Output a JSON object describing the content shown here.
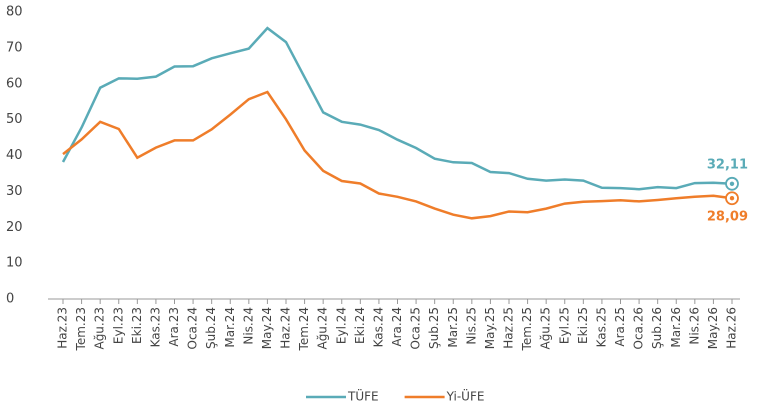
{
  "chart_data": {
    "type": "line",
    "categories": [
      "Haz.23",
      "Tem.23",
      "Ağu.23",
      "Eyl.23",
      "Eki.23",
      "Kas.23",
      "Ara.23",
      "Oca.24",
      "Şub.24",
      "Mar.24",
      "Nis.24",
      "May.24",
      "Haz.24",
      "Tem.24",
      "Ağu.24",
      "Eyl.24",
      "Eki.24",
      "Kas.24",
      "Ara.24",
      "Oca.25",
      "Şub.25",
      "Mar.25",
      "Nis.25",
      "May.25",
      "Haz.25",
      "Tem.25",
      "Ağu.25",
      "Eyl.25",
      "Eki.25",
      "Kas.25",
      "Ara.25",
      "Oca.26",
      "Şub.26",
      "Mar.26",
      "Nis.26",
      "May.26",
      "Haz.26"
    ],
    "series": [
      {
        "name": "TÜFE",
        "color": "#5aabb7",
        "values": [
          38.2,
          47.8,
          58.9,
          61.5,
          61.4,
          62,
          64.8,
          64.9,
          67.1,
          68.5,
          69.8,
          75.5,
          71.6,
          61.8,
          52,
          49.4,
          48.6,
          47.1,
          44.4,
          42.1,
          39.1,
          38.1,
          37.9,
          35.4,
          35.1,
          33.5,
          33,
          33.3,
          33,
          31,
          30.9,
          30.6,
          31.2,
          30.9,
          32.3,
          32.4,
          32.11
        ],
        "value_labels": [
          null,
          null,
          null,
          null,
          null,
          null,
          null,
          null,
          null,
          null,
          null,
          null,
          null,
          null,
          null,
          null,
          null,
          null,
          null,
          null,
          null,
          null,
          null,
          null,
          null,
          null,
          null,
          null,
          null,
          null,
          null,
          null,
          null,
          null,
          null,
          null,
          "32,11"
        ]
      },
      {
        "name": "Yi-ÜFE",
        "color": "#ef7d2a",
        "values": [
          40.4,
          44.5,
          49.4,
          47.4,
          39.4,
          42.2,
          44.2,
          44.2,
          47.3,
          51.4,
          55.7,
          57.7,
          50.1,
          41.4,
          35.7,
          32.9,
          32.2,
          29.4,
          28.5,
          27.2,
          25.2,
          23.5,
          22.5,
          23.1,
          24.4,
          24.2,
          25.2,
          26.6,
          27.1,
          27.3,
          27.5,
          27.2,
          27.6,
          28.1,
          28.5,
          28.8,
          28.09
        ],
        "value_labels": [
          null,
          null,
          null,
          null,
          null,
          null,
          null,
          null,
          null,
          null,
          null,
          null,
          null,
          null,
          null,
          null,
          null,
          null,
          null,
          null,
          null,
          null,
          null,
          null,
          null,
          null,
          null,
          null,
          null,
          null,
          null,
          null,
          null,
          null,
          null,
          null,
          "28,09"
        ]
      }
    ],
    "ylim": [
      0,
      80
    ],
    "yticks": [
      0,
      10,
      20,
      30,
      40,
      50,
      60,
      70,
      80
    ],
    "grid": false,
    "legend": "bottom"
  }
}
